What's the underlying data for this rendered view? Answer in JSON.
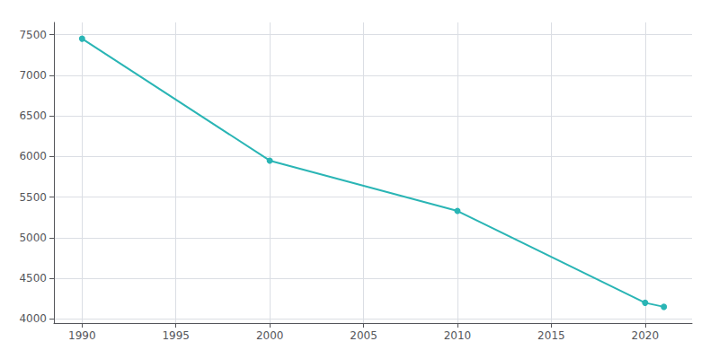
{
  "chart_data": {
    "type": "line",
    "x": [
      1990,
      2000,
      2010,
      2020,
      2021
    ],
    "values": [
      7450,
      5950,
      5330,
      4200,
      4150
    ],
    "color": "#2ab5b5",
    "marker": "circle",
    "xlim": [
      1988.5,
      2022.5
    ],
    "xticks": [
      1990,
      1995,
      2000,
      2005,
      2010,
      2015,
      2020
    ],
    "ylim": [
      3950,
      7650
    ],
    "yticks": [
      4000,
      4500,
      5000,
      5500,
      6000,
      6500,
      7000,
      7500
    ],
    "grid": true
  }
}
